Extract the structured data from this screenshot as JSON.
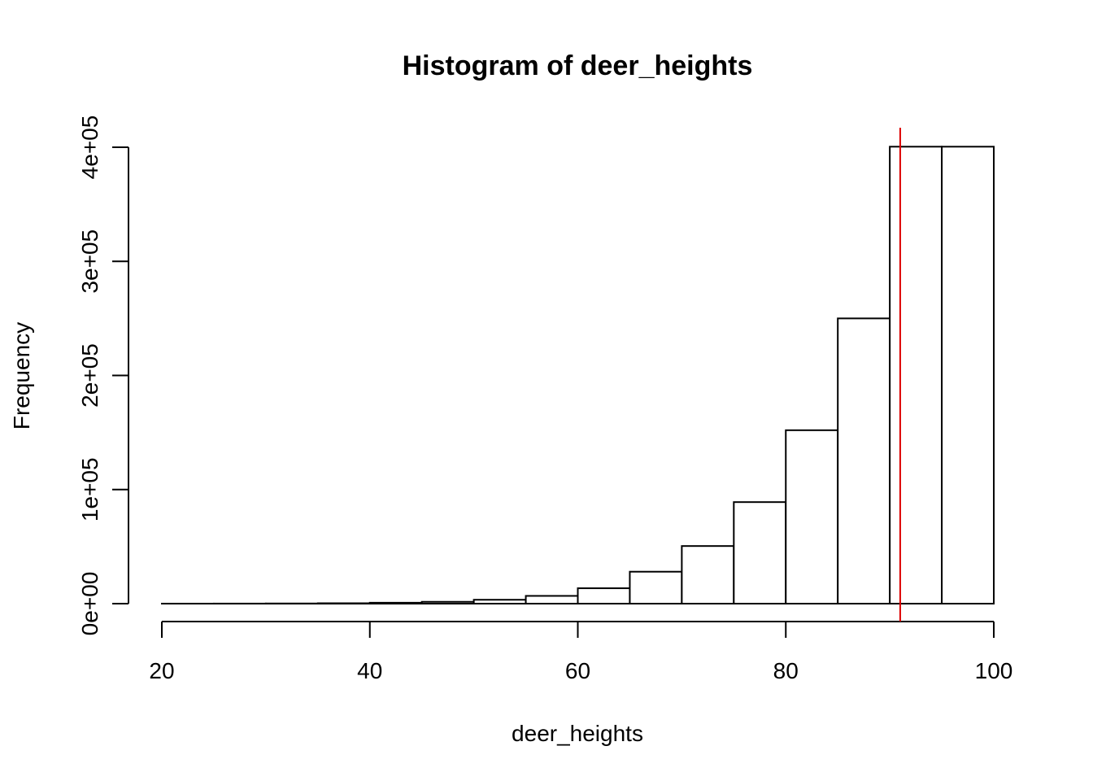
{
  "chart_data": {
    "type": "bar",
    "title": "Histogram of deer_heights",
    "xlabel": "deer_heights",
    "ylabel": "Frequency",
    "xlim": [
      20,
      100
    ],
    "ylim": [
      0,
      400000
    ],
    "x_ticks": [
      20,
      40,
      60,
      80,
      100
    ],
    "x_tick_labels": [
      "20",
      "40",
      "60",
      "80",
      "100"
    ],
    "y_ticks": [
      0,
      100000,
      200000,
      300000,
      400000
    ],
    "y_tick_labels": [
      "0e+00",
      "1e+05",
      "2e+05",
      "3e+05",
      "4e+05"
    ],
    "bin_edges": [
      20,
      25,
      30,
      35,
      40,
      45,
      50,
      55,
      60,
      65,
      70,
      75,
      80,
      85,
      90,
      95,
      100
    ],
    "values": [
      20,
      60,
      150,
      350,
      800,
      1600,
      3400,
      6800,
      13500,
      28000,
      50500,
      89000,
      152000,
      250000,
      400500,
      400500
    ],
    "reference_line": {
      "x": 91,
      "color": "#dd0000"
    },
    "grid": false,
    "legend": "none"
  }
}
